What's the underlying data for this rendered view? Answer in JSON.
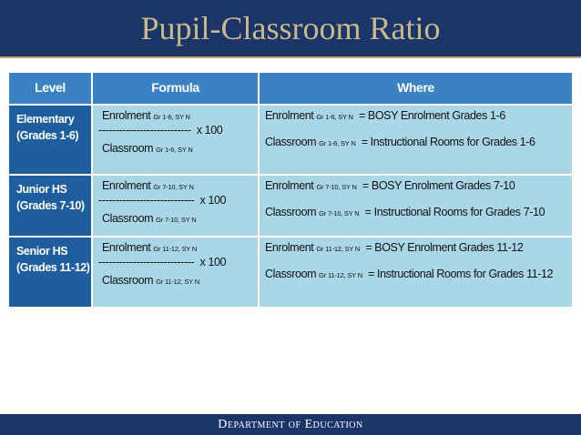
{
  "header": {
    "title": "Pupil-Classroom Ratio"
  },
  "table": {
    "columns": [
      "Level",
      "Formula",
      "Where"
    ],
    "rows": [
      {
        "level": [
          "Elementary",
          "(Grades 1-6)"
        ],
        "formula": {
          "numerator": "Enrolment",
          "numerator_sub": "Gr 1-6, SY N",
          "rule": "---------------------------",
          "multiplier": "x  100",
          "denominator": "Classroom",
          "denominator_sub": "Gr 1-6, SY N"
        },
        "where": [
          {
            "term": "Enrolment",
            "sub": "Gr 1-6, SY N",
            "definition": "= BOSY Enrolment Grades 1-6"
          },
          {
            "term": "Classroom",
            "sub": "Gr 1-6, SY N",
            "definition": "= Instructional Rooms for Grades 1-6"
          }
        ]
      },
      {
        "level": [
          "Junior HS",
          "(Grades 7-10)"
        ],
        "formula": {
          "numerator": "Enrolment",
          "numerator_sub": "Gr 7-10, SY N",
          "rule": "----------------------------",
          "multiplier": "x  100",
          "denominator": "Classroom",
          "denominator_sub": "Gr 7-10, SY N"
        },
        "where": [
          {
            "term": "Enrolment",
            "sub": "Gr 7-10, SY N",
            "definition": "= BOSY Enrolment Grades 7-10"
          },
          {
            "term": "Classroom",
            "sub": "Gr 7-10, SY N",
            "definition": "= Instructional Rooms for Grades 7-10"
          }
        ]
      },
      {
        "level": [
          "Senior HS",
          "(Grades 11-12)"
        ],
        "formula": {
          "numerator": "Enrolment",
          "numerator_sub": "Gr 11-12, SY N",
          "rule": "----------------------------",
          "multiplier": "x  100",
          "denominator": "Classroom",
          "denominator_sub": "Gr 11-12, SY N"
        },
        "where": [
          {
            "term": "Enrolment",
            "sub": "Gr 11-12, SY N",
            "definition": "= BOSY Enrolment Grades 11-12"
          },
          {
            "term": "Classroom",
            "sub": "Gr 11-12, SY N",
            "definition": "= Instructional Rooms for Grades 11-12"
          }
        ]
      }
    ]
  },
  "footer": {
    "text": "Department of Education"
  }
}
